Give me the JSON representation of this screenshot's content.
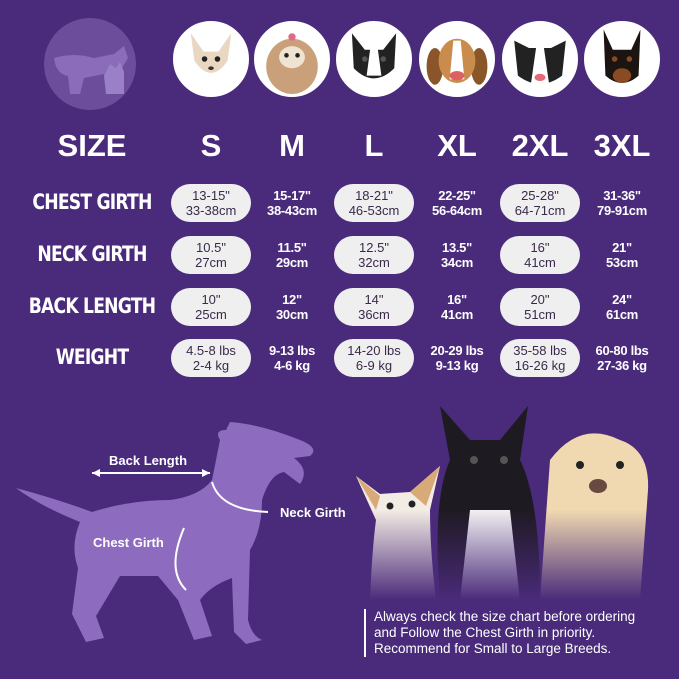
{
  "header": {
    "size_label": "SIZE",
    "sizes": [
      "S",
      "M",
      "L",
      "XL",
      "2XL",
      "3XL"
    ]
  },
  "rows": [
    {
      "label": "CHEST GIRTH",
      "values": [
        [
          "13-15\"",
          "33-38cm"
        ],
        [
          "15-17\"",
          "38-43cm"
        ],
        [
          "18-21\"",
          "46-53cm"
        ],
        [
          "22-25\"",
          "56-64cm"
        ],
        [
          "25-28\"",
          "64-71cm"
        ],
        [
          "31-36\"",
          "79-91cm"
        ]
      ]
    },
    {
      "label": "NECK GIRTH",
      "values": [
        [
          "10.5\"",
          "27cm"
        ],
        [
          "11.5\"",
          "29cm"
        ],
        [
          "12.5\"",
          "32cm"
        ],
        [
          "13.5\"",
          "34cm"
        ],
        [
          "16\"",
          "41cm"
        ],
        [
          "21\"",
          "53cm"
        ]
      ]
    },
    {
      "label": "BACK LENGTH",
      "values": [
        [
          "10\"",
          "25cm"
        ],
        [
          "12\"",
          "30cm"
        ],
        [
          "14\"",
          "36cm"
        ],
        [
          "16\"",
          "41cm"
        ],
        [
          "20\"",
          "51cm"
        ],
        [
          "24\"",
          "61cm"
        ]
      ]
    },
    {
      "label": "WEIGHT",
      "values": [
        [
          "4.5-8 lbs",
          "2-4 kg"
        ],
        [
          "9-13 lbs",
          "4-6 kg"
        ],
        [
          "14-20 lbs",
          "6-9 kg"
        ],
        [
          "20-29 lbs",
          "9-13 kg"
        ],
        [
          "35-58 lbs",
          "16-26 kg"
        ],
        [
          "60-80 lbs",
          "27-36 kg"
        ]
      ]
    }
  ],
  "diagram": {
    "back_length": "Back Length",
    "neck_girth": "Neck Girth",
    "chest_girth": "Chest Girth"
  },
  "note": [
    "Always check the size chart before ordering",
    "and Follow the Chest Girth in priority.",
    "Recommend for Small to Large Breeds."
  ],
  "colors": {
    "background": "#4a2a7a",
    "silhouette": "#8d6cc0",
    "pill": "#efeff0"
  },
  "avatar_breeds": [
    "chihuahua",
    "shih-tzu",
    "boston-terrier",
    "beagle",
    "border-collie",
    "doberman"
  ]
}
